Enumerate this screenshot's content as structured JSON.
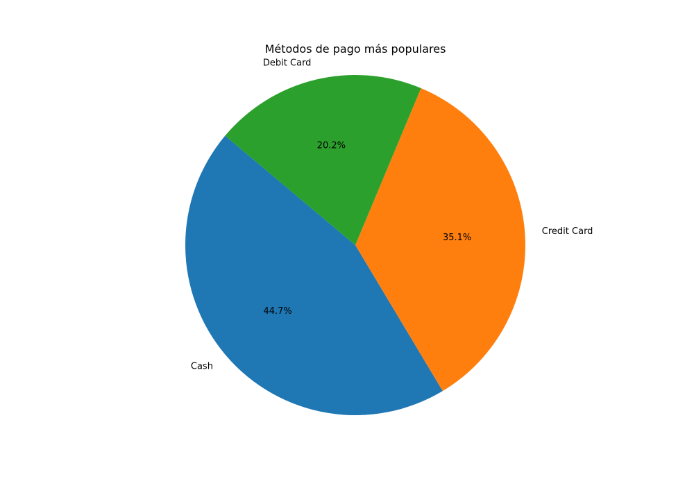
{
  "chart_data": {
    "type": "pie",
    "title": "Métodos de pago más populares",
    "categories": [
      "Cash",
      "Credit Card",
      "Debit Card"
    ],
    "values": [
      44.7,
      35.1,
      20.2
    ],
    "percent_labels": [
      "44.7%",
      "35.1%",
      "20.2%"
    ],
    "colors": [
      "#1f77b4",
      "#ff7f0e",
      "#2ca02c"
    ],
    "start_angle_deg": 140,
    "direction": "counterclockwise",
    "legend": "none"
  }
}
